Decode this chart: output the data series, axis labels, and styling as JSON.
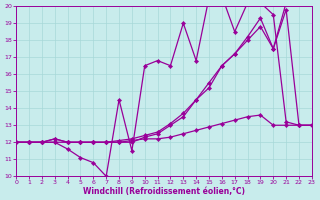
{
  "xlabel": "Windchill (Refroidissement éolien,°C)",
  "bg_color": "#c8ecec",
  "grid_color": "#a8d8d8",
  "line_color": "#990099",
  "xlim": [
    0,
    23
  ],
  "ylim": [
    10,
    20
  ],
  "xticks": [
    0,
    1,
    2,
    3,
    4,
    5,
    6,
    7,
    8,
    9,
    10,
    11,
    12,
    13,
    14,
    15,
    16,
    17,
    18,
    19,
    20,
    21,
    22,
    23
  ],
  "yticks": [
    10,
    11,
    12,
    13,
    14,
    15,
    16,
    17,
    18,
    19,
    20
  ],
  "s1x": [
    0,
    1,
    2,
    3,
    4,
    5,
    6,
    7,
    8,
    9,
    10,
    11,
    12,
    13,
    14,
    15,
    16,
    17,
    18,
    19,
    20,
    21,
    22,
    23
  ],
  "s1y": [
    12,
    12,
    12,
    12,
    11.6,
    11.1,
    10.8,
    10.0,
    14.5,
    11.5,
    16.5,
    16.8,
    16.5,
    19.0,
    16.8,
    20.5,
    20.6,
    18.5,
    20.2,
    20.2,
    19.5,
    13.2,
    13.0,
    13.0
  ],
  "s2x": [
    0,
    1,
    2,
    3,
    4,
    5,
    6,
    7,
    8,
    9,
    10,
    11,
    12,
    13,
    14,
    15,
    16,
    17,
    18,
    19,
    20,
    21,
    22,
    23
  ],
  "s2y": [
    12,
    12,
    12,
    12.2,
    12,
    12,
    12,
    12,
    12.1,
    12.2,
    12.4,
    12.6,
    13.1,
    13.7,
    14.5,
    15.2,
    16.5,
    17.2,
    18.0,
    18.8,
    17.5,
    20.2,
    20.2,
    20.2
  ],
  "s3x": [
    0,
    1,
    2,
    3,
    4,
    5,
    6,
    7,
    8,
    9,
    10,
    11,
    12,
    13,
    14,
    15,
    16,
    17,
    18,
    19,
    20,
    21,
    22,
    23
  ],
  "s3y": [
    12,
    12,
    12,
    12.2,
    12,
    12,
    12,
    12,
    12,
    12,
    12.3,
    12.5,
    13.0,
    13.5,
    14.5,
    15.5,
    16.5,
    17.2,
    18.2,
    19.3,
    17.5,
    19.8,
    13.0,
    13.0
  ],
  "s4x": [
    0,
    1,
    2,
    3,
    4,
    5,
    6,
    7,
    8,
    9,
    10,
    11,
    12,
    13,
    14,
    15,
    16,
    17,
    18,
    19,
    20,
    21,
    22,
    23
  ],
  "s4y": [
    12.0,
    12.0,
    12.0,
    12.0,
    12.0,
    12.0,
    12.0,
    12.0,
    12.0,
    12.1,
    12.2,
    12.2,
    12.3,
    12.5,
    12.7,
    12.9,
    13.1,
    13.3,
    13.5,
    13.6,
    13.0,
    13.0,
    13.0,
    13.0
  ]
}
